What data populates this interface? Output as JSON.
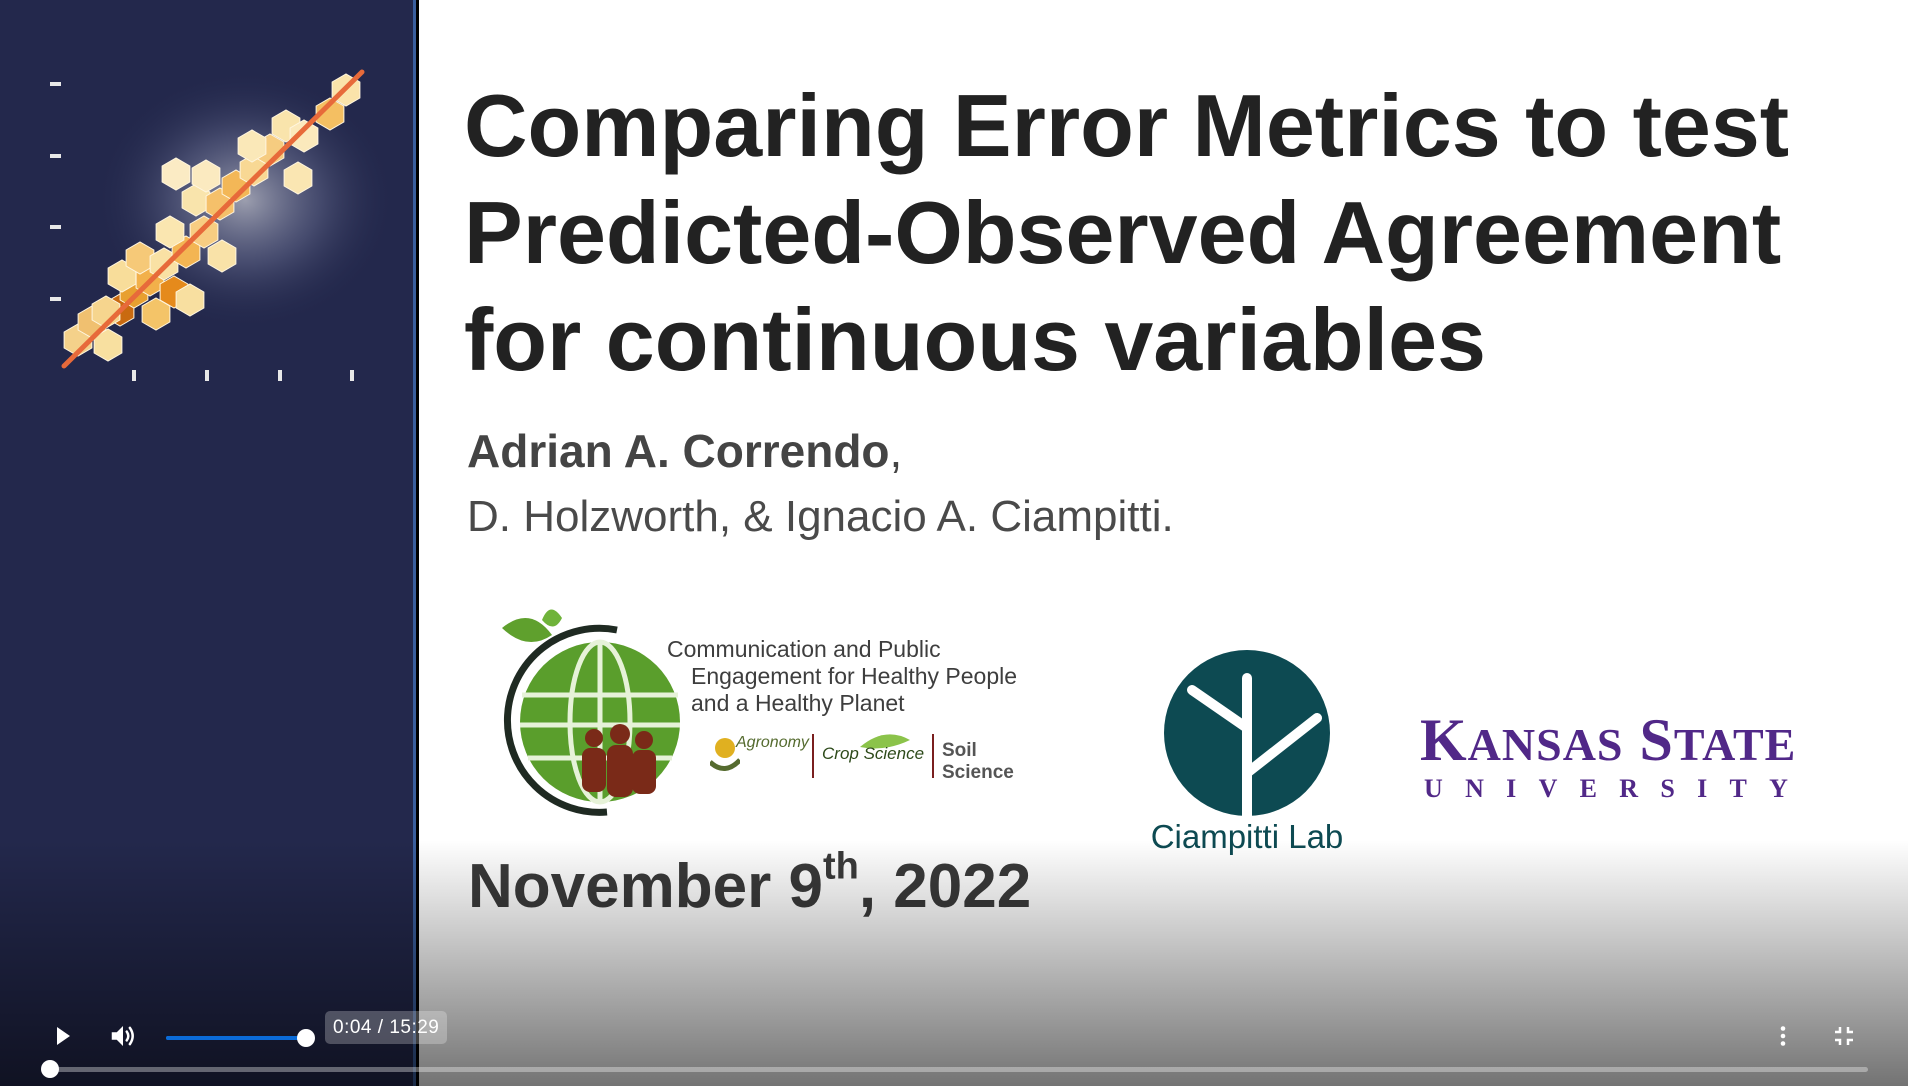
{
  "slide": {
    "title_lines": [
      "Comparing Error Metrics to test",
      "Predicted-Observed Agreement",
      "for continuous variables"
    ],
    "author_lead": "Adrian A. Correndo",
    "author_lead_suffix": ",",
    "coauthors": "D. Holzworth, & Ignacio A. Ciampitti.",
    "date_prefix": "November 9",
    "date_sup": "th",
    "date_suffix": ", 2022",
    "logo_cpe_lines": [
      "Communication and Public",
      "Engagement for Healthy People",
      "and a Healthy Planet"
    ],
    "logo_societies": [
      "Agronomy",
      "Crop Science",
      "Soil Science"
    ],
    "logo_ciampitti": "Ciampitti Lab",
    "logo_ksu_line1": "Kansas State",
    "logo_ksu_line2": "UNIVERSITY"
  },
  "player": {
    "time_display": "0:04 / 15:29",
    "progress_fraction": 0.0043,
    "volume_fraction": 1.0,
    "icons": [
      "play-icon",
      "volume-icon",
      "more-vert-icon",
      "fullscreen-exit-icon"
    ],
    "accent_color": "#0b6bd8"
  },
  "colors": {
    "sidebar_bg": "#23284c",
    "ksu_purple": "#512888",
    "ciampitti_teal": "#0d4a52"
  }
}
